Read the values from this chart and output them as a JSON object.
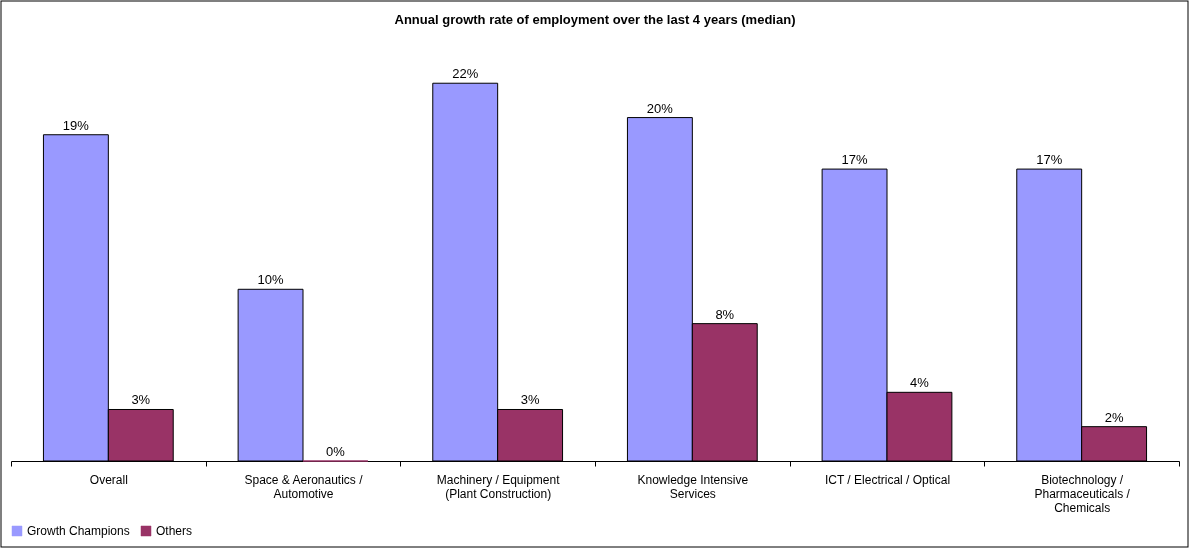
{
  "chart_data": {
    "type": "bar",
    "title": "Annual growth rate of employment over the last 4 years (median)",
    "categories": [
      "Overall",
      "Space & Aeronautics / Automotive",
      "Machinery / Equipment (Plant Construction)",
      "Knowledge Intensive Services",
      "ICT / Electrical / Optical",
      "Biotechnology / Pharmaceuticals / Chemicals"
    ],
    "series": [
      {
        "name": "Growth Champions",
        "color": "#9999ff",
        "values": [
          19,
          10,
          22,
          20,
          17,
          17
        ],
        "value_labels": [
          "19%",
          "10%",
          "22%",
          "20%",
          "17%",
          "17%"
        ]
      },
      {
        "name": "Others",
        "color": "#993366",
        "values": [
          3,
          0,
          3,
          8,
          4,
          2
        ],
        "value_labels": [
          "3%",
          "0%",
          "3%",
          "8%",
          "4%",
          "2%"
        ]
      }
    ],
    "legend": "bottom left",
    "grid": false
  }
}
